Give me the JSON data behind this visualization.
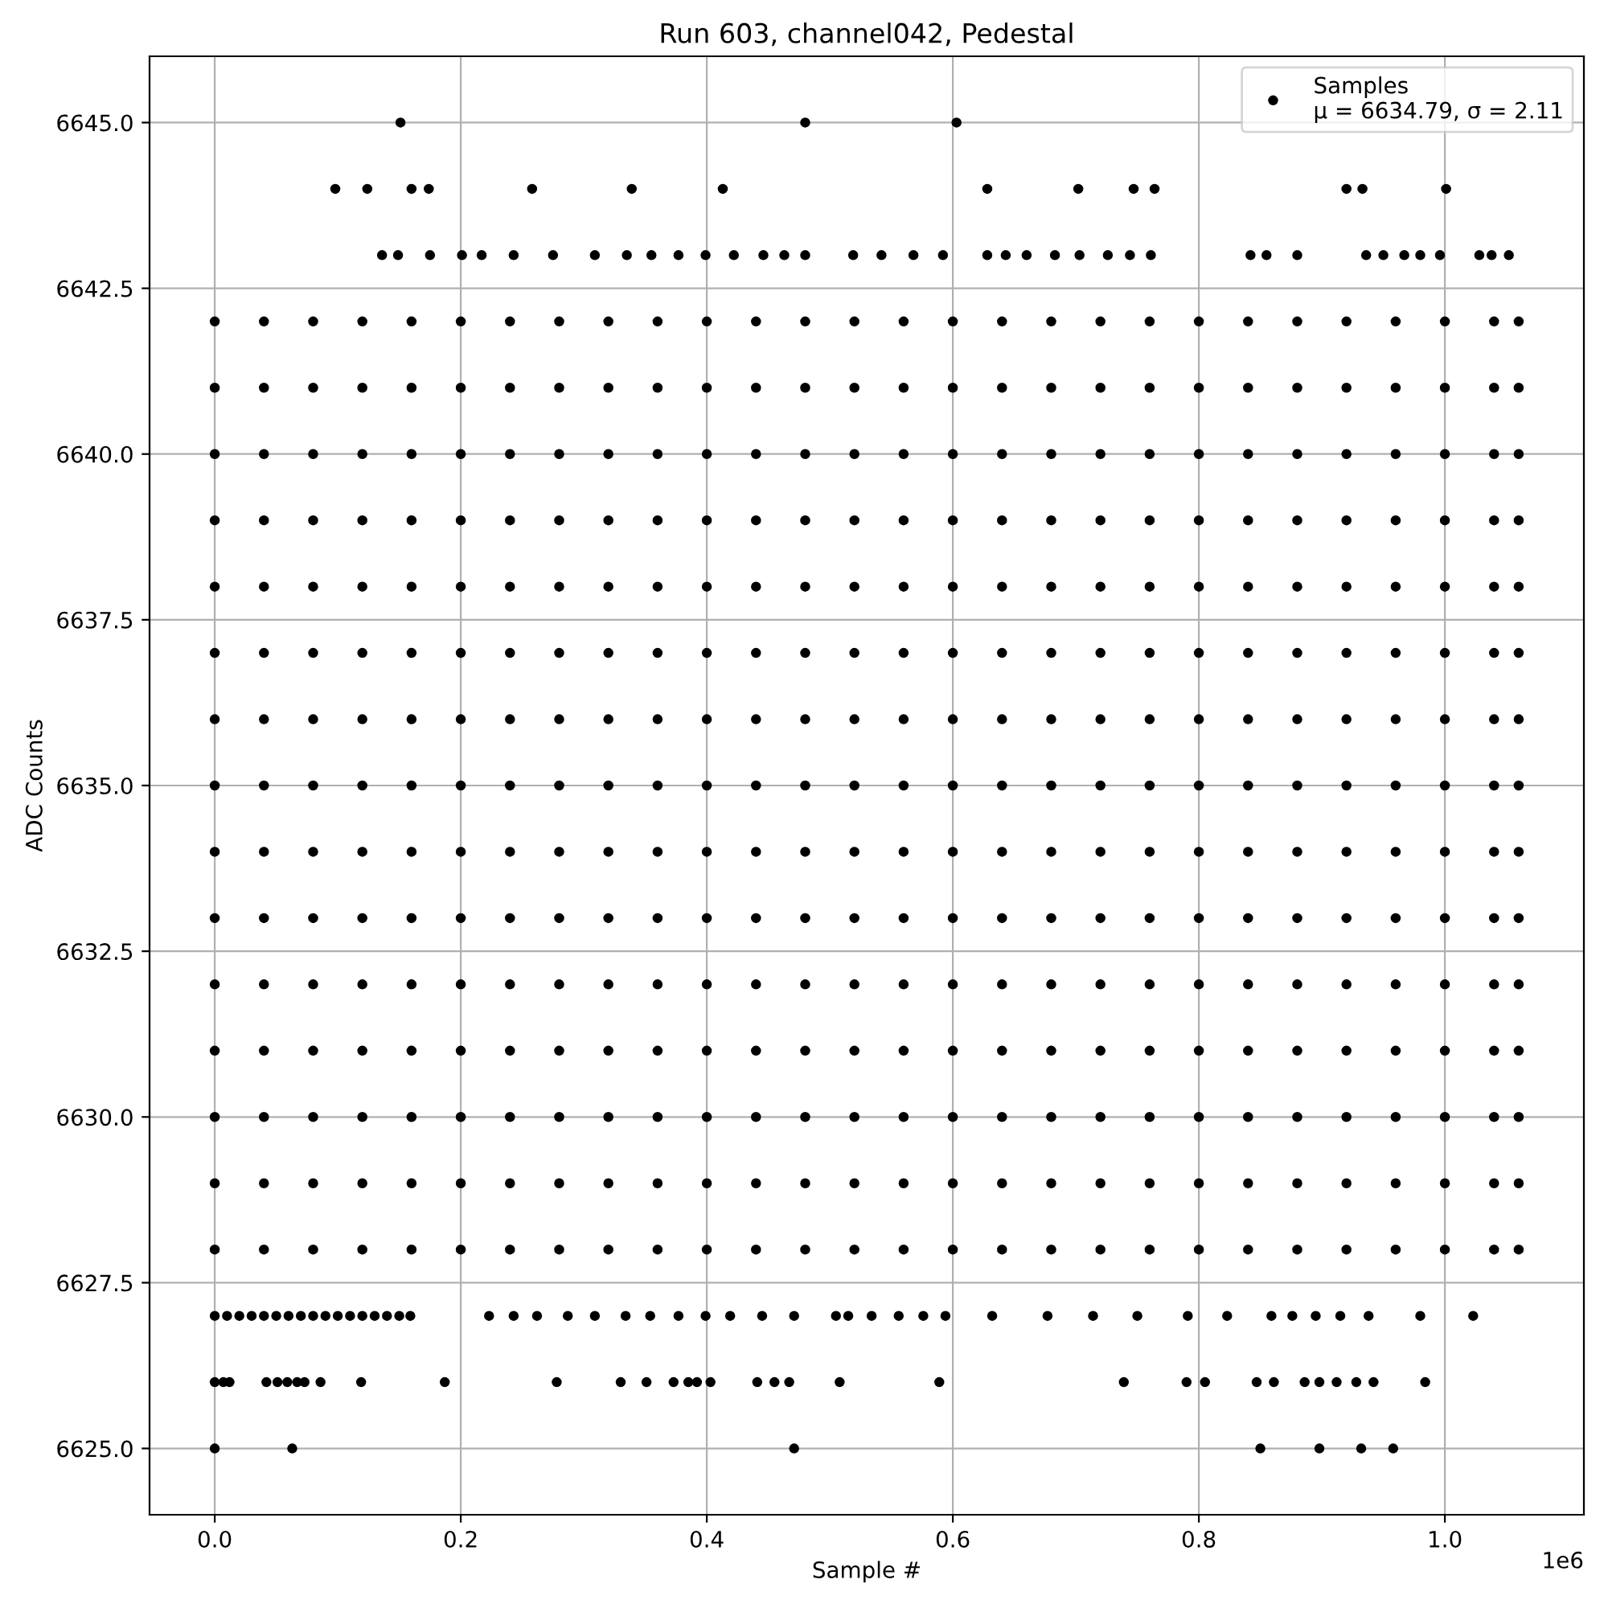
{
  "chart_data": {
    "type": "scatter",
    "title": "Run 603, channel042, Pedestal",
    "xlabel": "Sample #",
    "ylabel": "ADC Counts",
    "annotations": [
      "1e6"
    ],
    "xlim": [
      -0.053,
      1.113
    ],
    "ylim": [
      6624,
      6646
    ],
    "xticks": [
      {
        "value": 0,
        "label": "0.0"
      },
      0.2,
      0.4,
      0.6,
      0.8,
      {
        "value": 1,
        "label": "1.0"
      }
    ],
    "yticks": [
      {
        "value": 6625,
        "label": "6625.0"
      },
      6627.5,
      {
        "value": 6630,
        "label": "6630.0"
      },
      6632.5,
      {
        "value": 6635,
        "label": "6635.0"
      },
      6637.5,
      {
        "value": 6640,
        "label": "6640.0"
      },
      6642.5,
      {
        "value": 6645,
        "label": "6645.0"
      }
    ],
    "grid": true,
    "legend": "top right",
    "marker": "circle",
    "series": [
      {
        "name": "Samples\nμ = 6634.79, σ = 2.11",
        "color": "#000000",
        "x": [
          0,
          0.04,
          0.08,
          0.12,
          0.16,
          0.2,
          0.24,
          0.28,
          0.32,
          0.36,
          0.4,
          0.44,
          0.48,
          0.52,
          0.56,
          0.6,
          0.64,
          0.68,
          0.72,
          0.76,
          0.8,
          0.84,
          0.88,
          0.92,
          0.96,
          1.0,
          1.04,
          1.06
        ],
        "values": [
          6640,
          6640,
          6640,
          6640,
          6640,
          6640,
          6640,
          6640,
          6640,
          6640,
          6640,
          6640,
          6640,
          6640,
          6640,
          6640,
          6640,
          6640,
          6640,
          6640,
          6640,
          6640,
          6640,
          6640,
          6640,
          6640,
          6640,
          6640
        ]
      },
      {
        "color": "#000000",
        "x": [
          0.151,
          0.48,
          0.603
        ],
        "values": [
          6645,
          6645,
          6645
        ]
      },
      {
        "color": "#000000",
        "x": [
          0.098,
          0.124,
          0.16,
          0.174,
          0.258,
          0.339,
          0.413,
          0.628,
          0.702,
          0.747,
          0.764,
          0.92,
          0.933,
          1.001
        ],
        "values": [
          6644,
          6644,
          6644,
          6644,
          6644,
          6644,
          6644,
          6644,
          6644,
          6644,
          6644,
          6644,
          6644,
          6644
        ]
      },
      {
        "color": "#000000",
        "x": [
          0.136,
          0.149,
          0.175,
          0.201,
          0.217,
          0.243,
          0.275,
          0.309,
          0.335,
          0.355,
          0.377,
          0.399,
          0.422,
          0.446,
          0.463,
          0.48,
          0.519,
          0.542,
          0.568,
          0.592,
          0.628,
          0.643,
          0.66,
          0.683,
          0.703,
          0.726,
          0.744,
          0.761,
          0.842,
          0.855,
          0.88,
          0.936,
          0.95,
          0.967,
          0.98,
          0.996,
          1.028,
          1.038,
          1.052
        ],
        "values": [
          6643,
          6643,
          6643,
          6643,
          6643,
          6643,
          6643,
          6643,
          6643,
          6643,
          6643,
          6643,
          6643,
          6643,
          6643,
          6643,
          6643,
          6643,
          6643,
          6643,
          6643,
          6643,
          6643,
          6643,
          6643,
          6643,
          6643,
          6643,
          6643,
          6643,
          6643,
          6643,
          6643,
          6643,
          6643,
          6643,
          6643,
          6643,
          6643
        ]
      },
      {
        "color": "#000000",
        "x": [
          0,
          0.04,
          0.08,
          0.12,
          0.16,
          0.2,
          0.24,
          0.28,
          0.32,
          0.36,
          0.4,
          0.44,
          0.48,
          0.52,
          0.56,
          0.6,
          0.64,
          0.68,
          0.72,
          0.76,
          0.8,
          0.84,
          0.88,
          0.92,
          0.96,
          1.0,
          1.04,
          1.06
        ],
        "values": [
          6642,
          6642,
          6642,
          6642,
          6642,
          6642,
          6642,
          6642,
          6642,
          6642,
          6642,
          6642,
          6642,
          6642,
          6642,
          6642,
          6642,
          6642,
          6642,
          6642,
          6642,
          6642,
          6642,
          6642,
          6642,
          6642,
          6642,
          6642
        ]
      },
      {
        "color": "#000000",
        "x": [
          0,
          0.04,
          0.08,
          0.12,
          0.16,
          0.2,
          0.24,
          0.28,
          0.32,
          0.36,
          0.4,
          0.44,
          0.48,
          0.52,
          0.56,
          0.6,
          0.64,
          0.68,
          0.72,
          0.76,
          0.8,
          0.84,
          0.88,
          0.92,
          0.96,
          1.0,
          1.04,
          1.06
        ],
        "values": [
          6641,
          6641,
          6641,
          6641,
          6641,
          6641,
          6641,
          6641,
          6641,
          6641,
          6641,
          6641,
          6641,
          6641,
          6641,
          6641,
          6641,
          6641,
          6641,
          6641,
          6641,
          6641,
          6641,
          6641,
          6641,
          6641,
          6641,
          6641
        ]
      },
      {
        "color": "#000000",
        "x": [
          0,
          0.04,
          0.08,
          0.12,
          0.16,
          0.2,
          0.24,
          0.28,
          0.32,
          0.36,
          0.4,
          0.44,
          0.48,
          0.52,
          0.56,
          0.6,
          0.64,
          0.68,
          0.72,
          0.76,
          0.8,
          0.84,
          0.88,
          0.92,
          0.96,
          1.0,
          1.04,
          1.06
        ],
        "values": [
          6639,
          6639,
          6639,
          6639,
          6639,
          6639,
          6639,
          6639,
          6639,
          6639,
          6639,
          6639,
          6639,
          6639,
          6639,
          6639,
          6639,
          6639,
          6639,
          6639,
          6639,
          6639,
          6639,
          6639,
          6639,
          6639,
          6639,
          6639
        ]
      },
      {
        "color": "#000000",
        "x": [
          0,
          0.04,
          0.08,
          0.12,
          0.16,
          0.2,
          0.24,
          0.28,
          0.32,
          0.36,
          0.4,
          0.44,
          0.48,
          0.52,
          0.56,
          0.6,
          0.64,
          0.68,
          0.72,
          0.76,
          0.8,
          0.84,
          0.88,
          0.92,
          0.96,
          1.0,
          1.04,
          1.06
        ],
        "values": [
          6638,
          6638,
          6638,
          6638,
          6638,
          6638,
          6638,
          6638,
          6638,
          6638,
          6638,
          6638,
          6638,
          6638,
          6638,
          6638,
          6638,
          6638,
          6638,
          6638,
          6638,
          6638,
          6638,
          6638,
          6638,
          6638,
          6638,
          6638
        ]
      },
      {
        "color": "#000000",
        "x": [
          0,
          0.04,
          0.08,
          0.12,
          0.16,
          0.2,
          0.24,
          0.28,
          0.32,
          0.36,
          0.4,
          0.44,
          0.48,
          0.52,
          0.56,
          0.6,
          0.64,
          0.68,
          0.72,
          0.76,
          0.8,
          0.84,
          0.88,
          0.92,
          0.96,
          1.0,
          1.04,
          1.06
        ],
        "values": [
          6637,
          6637,
          6637,
          6637,
          6637,
          6637,
          6637,
          6637,
          6637,
          6637,
          6637,
          6637,
          6637,
          6637,
          6637,
          6637,
          6637,
          6637,
          6637,
          6637,
          6637,
          6637,
          6637,
          6637,
          6637,
          6637,
          6637,
          6637
        ]
      },
      {
        "color": "#000000",
        "x": [
          0,
          0.04,
          0.08,
          0.12,
          0.16,
          0.2,
          0.24,
          0.28,
          0.32,
          0.36,
          0.4,
          0.44,
          0.48,
          0.52,
          0.56,
          0.6,
          0.64,
          0.68,
          0.72,
          0.76,
          0.8,
          0.84,
          0.88,
          0.92,
          0.96,
          1.0,
          1.04,
          1.06
        ],
        "values": [
          6636,
          6636,
          6636,
          6636,
          6636,
          6636,
          6636,
          6636,
          6636,
          6636,
          6636,
          6636,
          6636,
          6636,
          6636,
          6636,
          6636,
          6636,
          6636,
          6636,
          6636,
          6636,
          6636,
          6636,
          6636,
          6636,
          6636,
          6636
        ]
      },
      {
        "color": "#000000",
        "x": [
          0,
          0.04,
          0.08,
          0.12,
          0.16,
          0.2,
          0.24,
          0.28,
          0.32,
          0.36,
          0.4,
          0.44,
          0.48,
          0.52,
          0.56,
          0.6,
          0.64,
          0.68,
          0.72,
          0.76,
          0.8,
          0.84,
          0.88,
          0.92,
          0.96,
          1.0,
          1.04,
          1.06
        ],
        "values": [
          6635,
          6635,
          6635,
          6635,
          6635,
          6635,
          6635,
          6635,
          6635,
          6635,
          6635,
          6635,
          6635,
          6635,
          6635,
          6635,
          6635,
          6635,
          6635,
          6635,
          6635,
          6635,
          6635,
          6635,
          6635,
          6635,
          6635,
          6635
        ]
      },
      {
        "color": "#000000",
        "x": [
          0,
          0.04,
          0.08,
          0.12,
          0.16,
          0.2,
          0.24,
          0.28,
          0.32,
          0.36,
          0.4,
          0.44,
          0.48,
          0.52,
          0.56,
          0.6,
          0.64,
          0.68,
          0.72,
          0.76,
          0.8,
          0.84,
          0.88,
          0.92,
          0.96,
          1.0,
          1.04,
          1.06
        ],
        "values": [
          6634,
          6634,
          6634,
          6634,
          6634,
          6634,
          6634,
          6634,
          6634,
          6634,
          6634,
          6634,
          6634,
          6634,
          6634,
          6634,
          6634,
          6634,
          6634,
          6634,
          6634,
          6634,
          6634,
          6634,
          6634,
          6634,
          6634,
          6634
        ]
      },
      {
        "color": "#000000",
        "x": [
          0,
          0.04,
          0.08,
          0.12,
          0.16,
          0.2,
          0.24,
          0.28,
          0.32,
          0.36,
          0.4,
          0.44,
          0.48,
          0.52,
          0.56,
          0.6,
          0.64,
          0.68,
          0.72,
          0.76,
          0.8,
          0.84,
          0.88,
          0.92,
          0.96,
          1.0,
          1.04,
          1.06
        ],
        "values": [
          6633,
          6633,
          6633,
          6633,
          6633,
          6633,
          6633,
          6633,
          6633,
          6633,
          6633,
          6633,
          6633,
          6633,
          6633,
          6633,
          6633,
          6633,
          6633,
          6633,
          6633,
          6633,
          6633,
          6633,
          6633,
          6633,
          6633,
          6633
        ]
      },
      {
        "color": "#000000",
        "x": [
          0,
          0.04,
          0.08,
          0.12,
          0.16,
          0.2,
          0.24,
          0.28,
          0.32,
          0.36,
          0.4,
          0.44,
          0.48,
          0.52,
          0.56,
          0.6,
          0.64,
          0.68,
          0.72,
          0.76,
          0.8,
          0.84,
          0.88,
          0.92,
          0.96,
          1.0,
          1.04,
          1.06
        ],
        "values": [
          6632,
          6632,
          6632,
          6632,
          6632,
          6632,
          6632,
          6632,
          6632,
          6632,
          6632,
          6632,
          6632,
          6632,
          6632,
          6632,
          6632,
          6632,
          6632,
          6632,
          6632,
          6632,
          6632,
          6632,
          6632,
          6632,
          6632,
          6632
        ]
      },
      {
        "color": "#000000",
        "x": [
          0,
          0.04,
          0.08,
          0.12,
          0.16,
          0.2,
          0.24,
          0.28,
          0.32,
          0.36,
          0.4,
          0.44,
          0.48,
          0.52,
          0.56,
          0.6,
          0.64,
          0.68,
          0.72,
          0.76,
          0.8,
          0.84,
          0.88,
          0.92,
          0.96,
          1.0,
          1.04,
          1.06
        ],
        "values": [
          6631,
          6631,
          6631,
          6631,
          6631,
          6631,
          6631,
          6631,
          6631,
          6631,
          6631,
          6631,
          6631,
          6631,
          6631,
          6631,
          6631,
          6631,
          6631,
          6631,
          6631,
          6631,
          6631,
          6631,
          6631,
          6631,
          6631,
          6631
        ]
      },
      {
        "color": "#000000",
        "x": [
          0,
          0.04,
          0.08,
          0.12,
          0.16,
          0.2,
          0.24,
          0.28,
          0.32,
          0.36,
          0.4,
          0.44,
          0.48,
          0.52,
          0.56,
          0.6,
          0.64,
          0.68,
          0.72,
          0.76,
          0.8,
          0.84,
          0.88,
          0.92,
          0.96,
          1.0,
          1.04,
          1.06
        ],
        "values": [
          6630,
          6630,
          6630,
          6630,
          6630,
          6630,
          6630,
          6630,
          6630,
          6630,
          6630,
          6630,
          6630,
          6630,
          6630,
          6630,
          6630,
          6630,
          6630,
          6630,
          6630,
          6630,
          6630,
          6630,
          6630,
          6630,
          6630,
          6630
        ]
      },
      {
        "color": "#000000",
        "x": [
          0,
          0.04,
          0.08,
          0.12,
          0.16,
          0.2,
          0.24,
          0.28,
          0.32,
          0.36,
          0.4,
          0.44,
          0.48,
          0.52,
          0.56,
          0.6,
          0.64,
          0.68,
          0.72,
          0.76,
          0.8,
          0.84,
          0.88,
          0.92,
          0.96,
          1.0,
          1.04,
          1.06
        ],
        "values": [
          6629,
          6629,
          6629,
          6629,
          6629,
          6629,
          6629,
          6629,
          6629,
          6629,
          6629,
          6629,
          6629,
          6629,
          6629,
          6629,
          6629,
          6629,
          6629,
          6629,
          6629,
          6629,
          6629,
          6629,
          6629,
          6629,
          6629,
          6629
        ]
      },
      {
        "color": "#000000",
        "x": [
          0,
          0.04,
          0.08,
          0.12,
          0.16,
          0.2,
          0.24,
          0.28,
          0.32,
          0.36,
          0.4,
          0.44,
          0.48,
          0.52,
          0.56,
          0.6,
          0.64,
          0.68,
          0.72,
          0.76,
          0.8,
          0.84,
          0.88,
          0.92,
          0.96,
          1.0,
          1.04,
          1.06
        ],
        "values": [
          6628,
          6628,
          6628,
          6628,
          6628,
          6628,
          6628,
          6628,
          6628,
          6628,
          6628,
          6628,
          6628,
          6628,
          6628,
          6628,
          6628,
          6628,
          6628,
          6628,
          6628,
          6628,
          6628,
          6628,
          6628,
          6628,
          6628,
          6628
        ]
      },
      {
        "color": "#000000",
        "x": [
          0,
          0.01,
          0.02,
          0.03,
          0.04,
          0.05,
          0.06,
          0.07,
          0.08,
          0.09,
          0.1,
          0.11,
          0.12,
          0.13,
          0.14,
          0.15,
          0.159,
          0.223,
          0.243,
          0.262,
          0.287,
          0.309,
          0.334,
          0.354,
          0.377,
          0.399,
          0.419,
          0.445,
          0.471,
          0.505,
          0.515,
          0.534,
          0.556,
          0.576,
          0.594,
          0.632,
          0.677,
          0.714,
          0.75,
          0.791,
          0.823,
          0.859,
          0.876,
          0.895,
          0.915,
          0.938,
          0.98,
          1.023
        ],
        "values": [
          6627,
          6627,
          6627,
          6627,
          6627,
          6627,
          6627,
          6627,
          6627,
          6627,
          6627,
          6627,
          6627,
          6627,
          6627,
          6627,
          6627,
          6627,
          6627,
          6627,
          6627,
          6627,
          6627,
          6627,
          6627,
          6627,
          6627,
          6627,
          6627,
          6627,
          6627,
          6627,
          6627,
          6627,
          6627,
          6627,
          6627,
          6627,
          6627,
          6627,
          6627,
          6627,
          6627,
          6627,
          6627,
          6627,
          6627,
          6627
        ]
      },
      {
        "color": "#000000",
        "x": [
          0,
          0.007,
          0.012,
          0.042,
          0.051,
          0.059,
          0.067,
          0.073,
          0.086,
          0.119,
          0.187,
          0.278,
          0.33,
          0.351,
          0.373,
          0.385,
          0.392,
          0.403,
          0.441,
          0.455,
          0.467,
          0.508,
          0.589,
          0.739,
          0.79,
          0.805,
          0.847,
          0.861,
          0.886,
          0.898,
          0.912,
          0.928,
          0.942,
          0.984
        ],
        "values": [
          6626,
          6626,
          6626,
          6626,
          6626,
          6626,
          6626,
          6626,
          6626,
          6626,
          6626,
          6626,
          6626,
          6626,
          6626,
          6626,
          6626,
          6626,
          6626,
          6626,
          6626,
          6626,
          6626,
          6626,
          6626,
          6626,
          6626,
          6626,
          6626,
          6626,
          6626,
          6626,
          6626,
          6626
        ]
      },
      {
        "color": "#000000",
        "x": [
          0,
          0.063,
          0.471,
          0.85,
          0.898,
          0.932,
          0.958
        ],
        "values": [
          6625,
          6625,
          6625,
          6625,
          6625,
          6625,
          6625
        ]
      }
    ]
  }
}
